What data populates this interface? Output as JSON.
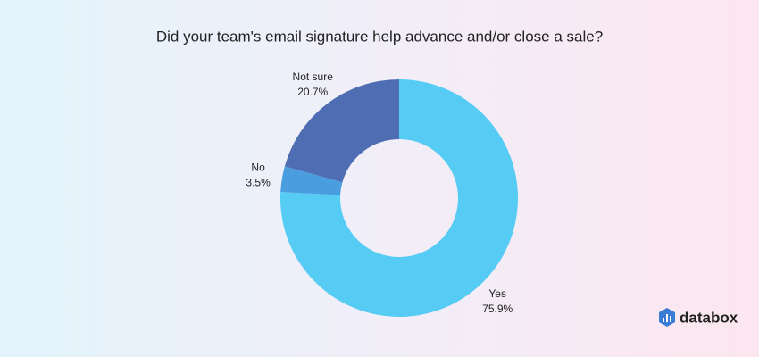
{
  "chart_data": {
    "type": "donut",
    "title": "Did your team's email signature help advance and/or close a sale?",
    "categories": [
      "Yes",
      "No",
      "Not sure"
    ],
    "values": [
      75.9,
      3.5,
      20.7
    ],
    "value_labels": [
      "75.9%",
      "3.5%",
      "20.7%"
    ],
    "colors": [
      "#56ccf5",
      "#4a9edf",
      "#4f6db3"
    ]
  },
  "brand": "databox"
}
